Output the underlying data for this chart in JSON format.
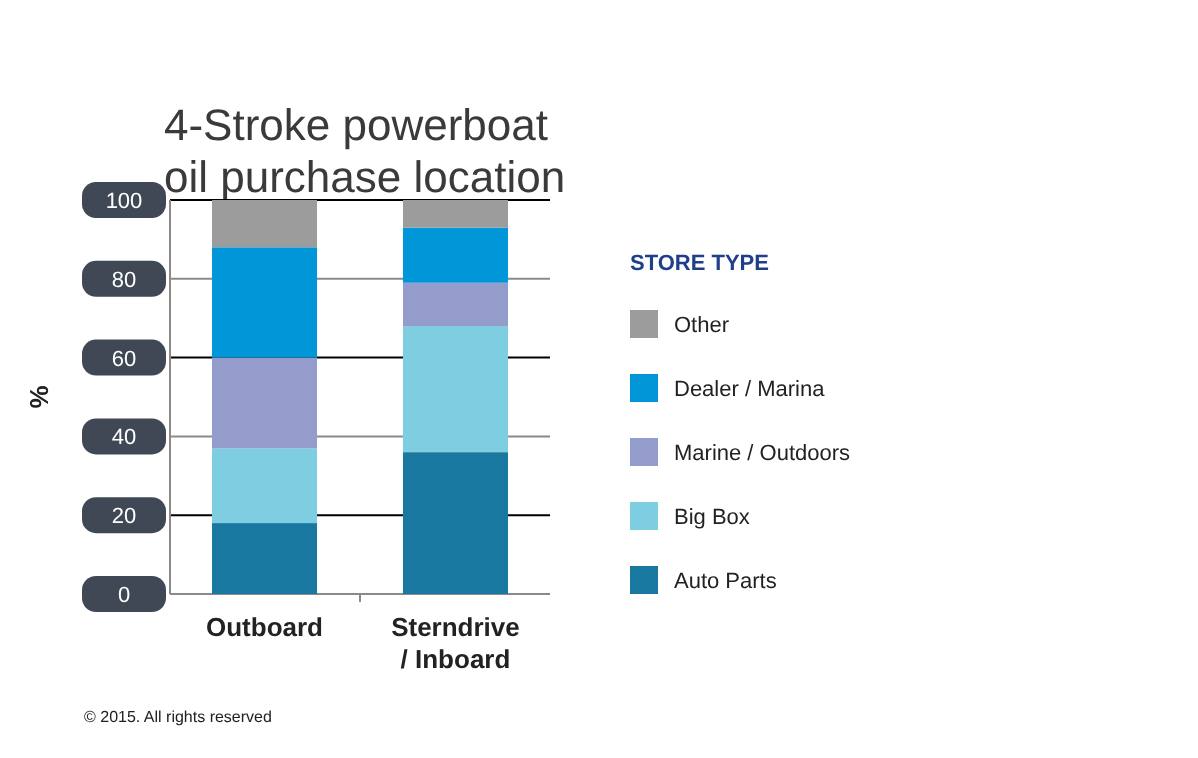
{
  "chart_data": {
    "type": "bar",
    "stacked": true,
    "title": "4-Stroke powerboat oil purchase location",
    "ylabel": "%",
    "legend_title": "STORE TYPE",
    "legend": "right",
    "grid": "y",
    "categories": [
      "Outboard",
      "Sterndrive / Inboard"
    ],
    "series": [
      {
        "name": "Auto Parts",
        "color": "#1878a0",
        "values": [
          18,
          36
        ]
      },
      {
        "name": "Big Box",
        "color": "#7fcde0",
        "values": [
          19,
          32
        ]
      },
      {
        "name": "Marine / Outdoors",
        "color": "#949ccc",
        "values": [
          23,
          11
        ]
      },
      {
        "name": "Dealer / Marina",
        "color": "#0096d8",
        "values": [
          28,
          14
        ]
      },
      {
        "name": "Other",
        "color": "#9c9c9c",
        "values": [
          12,
          7
        ]
      }
    ],
    "ylim": [
      0,
      100
    ],
    "yticks": [
      0,
      20,
      40,
      60,
      80,
      100
    ],
    "annotations": [
      "© 2015. All rights reserved"
    ]
  }
}
